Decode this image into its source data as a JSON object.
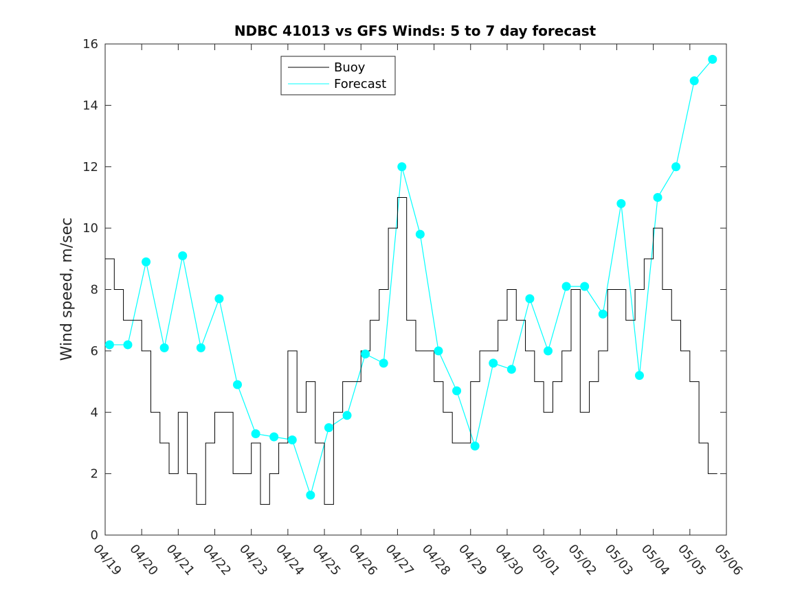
{
  "chart_data": {
    "type": "line",
    "title": "NDBC 41013 vs GFS Winds: 5 to 7 day forecast",
    "xlabel": "",
    "ylabel": "Wind speed, m/sec",
    "ylim": [
      0,
      16
    ],
    "yticks": [
      0,
      2,
      4,
      6,
      8,
      10,
      12,
      14,
      16
    ],
    "xticks": [
      "04/19",
      "04/20",
      "04/21",
      "04/22",
      "04/23",
      "04/24",
      "04/25",
      "04/26",
      "04/27",
      "04/28",
      "04/29",
      "04/30",
      "05/01",
      "05/02",
      "05/03",
      "05/04",
      "05/05",
      "05/06"
    ],
    "x_unit": "days since 04/19",
    "xlim": [
      0,
      17
    ],
    "grid": false,
    "legend_position": "top-center",
    "colors": {
      "buoy": "#000000",
      "forecast": "#00ffff",
      "axis": "#262626"
    },
    "series": [
      {
        "name": "Buoy",
        "x": [
          0,
          0.25,
          0.5,
          0.75,
          1.0,
          1.25,
          1.5,
          1.75,
          2.0,
          2.25,
          2.5,
          2.75,
          3.0,
          3.25,
          3.5,
          3.75,
          4.0,
          4.25,
          4.5,
          4.75,
          5.0,
          5.25,
          5.5,
          5.75,
          6.0,
          6.25,
          6.5,
          6.75,
          7.0,
          7.25,
          7.5,
          7.75,
          8.0,
          8.25,
          8.5,
          8.75,
          9.0,
          9.25,
          9.5,
          9.75,
          10.0,
          10.25,
          10.5,
          10.75,
          11.0,
          11.25,
          11.5,
          11.75,
          12.0,
          12.25,
          12.5,
          12.75,
          13.0,
          13.25,
          13.5,
          13.75,
          14.0,
          14.25,
          14.5,
          14.75,
          15.0,
          15.25,
          15.5,
          15.75,
          16.0,
          16.25,
          16.5
        ],
        "values": [
          9,
          8,
          7,
          7,
          6,
          4,
          3,
          2,
          4,
          2,
          1,
          3,
          4,
          4,
          2,
          2,
          3,
          1,
          2,
          3,
          6,
          4,
          5,
          3,
          1,
          4,
          5,
          5,
          6,
          7,
          8,
          10,
          11,
          7,
          6,
          6,
          5,
          4,
          3,
          3,
          5,
          6,
          6,
          7,
          8,
          7,
          6,
          5,
          4,
          5,
          6,
          8,
          4,
          5,
          6,
          8,
          8,
          7,
          8,
          9,
          10,
          8,
          7,
          6,
          5,
          3,
          2
        ]
      },
      {
        "name": "Forecast",
        "points_x": [
          0.12,
          0.62,
          1.12,
          1.62,
          2.12,
          2.62,
          3.12,
          3.62,
          4.12,
          4.62,
          5.12,
          5.62,
          6.12,
          6.62,
          7.12,
          7.62,
          8.12,
          8.62,
          9.12,
          9.62,
          10.12,
          10.62,
          11.12,
          11.62,
          12.12,
          12.62,
          13.12,
          13.62,
          14.12,
          14.62,
          15.12,
          15.62,
          16.12,
          16.62
        ],
        "points_y": [
          6.2,
          6.2,
          8.9,
          6.1,
          9.1,
          6.1,
          7.7,
          4.9,
          3.3,
          3.2,
          3.1,
          1.3,
          3.5,
          3.9,
          5.9,
          5.6,
          12.0,
          9.8,
          6.0,
          4.7,
          2.9,
          5.6,
          5.4,
          7.7,
          6.0,
          8.1,
          8.1,
          7.2,
          10.8,
          5.2,
          11.0,
          12.0,
          14.8,
          15.5
        ]
      }
    ]
  }
}
